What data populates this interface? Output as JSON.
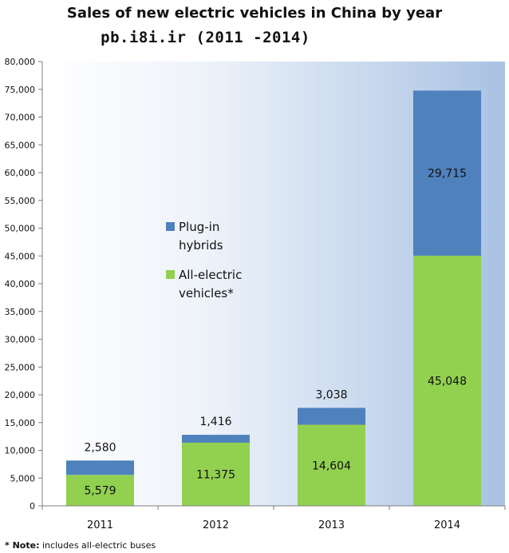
{
  "chart_data": {
    "type": "bar",
    "stacked": true,
    "title": "Sales of new electric vehicles in China by year",
    "subtitle": "pb.i8i.ir  (2011 -2014)",
    "categories": [
      "2011",
      "2012",
      "2013",
      "2014"
    ],
    "series": [
      {
        "name": "All-electric vehicles*",
        "values": [
          5579,
          11375,
          14604,
          45048
        ],
        "color": "#92d050",
        "labels": [
          "5,579",
          "11,375",
          "14,604",
          "45,048"
        ]
      },
      {
        "name": "Plug-in hybrids",
        "values": [
          2580,
          1416,
          3038,
          29715
        ],
        "color": "#4f81bd",
        "labels": [
          "2,580",
          "1,416",
          "3,038",
          "29,715"
        ]
      }
    ],
    "ylim": [
      0,
      80000
    ],
    "yticks": [
      0,
      5000,
      10000,
      15000,
      20000,
      25000,
      30000,
      35000,
      40000,
      45000,
      50000,
      55000,
      60000,
      65000,
      70000,
      75000,
      80000
    ],
    "ytick_labels": [
      "0",
      "5,000",
      "10,000",
      "15,000",
      "20,000",
      "25,000",
      "30,000",
      "35,000",
      "40,000",
      "45,000",
      "50,000",
      "55,000",
      "60,000",
      "65,000",
      "70,000",
      "75,000",
      "80,000"
    ],
    "legend": {
      "placement": "center-left",
      "entries": [
        {
          "lines": [
            "Plug-in",
            "hybrids"
          ],
          "color": "#4f81bd"
        },
        {
          "lines": [
            "All-electric",
            "vehicles*"
          ],
          "color": "#92d050"
        }
      ]
    },
    "grid": false,
    "note_bold": "* Note:",
    "note_text": " includes all-electric buses"
  }
}
